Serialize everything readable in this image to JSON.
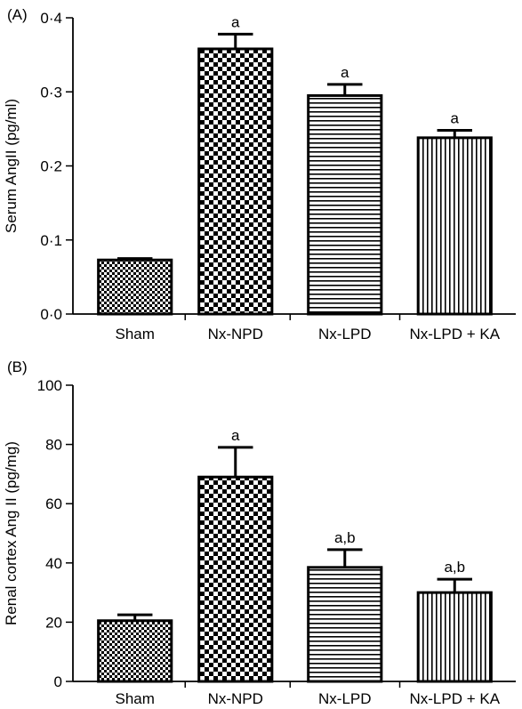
{
  "chart_data": [
    {
      "type": "bar",
      "panel": "(A)",
      "ylabel": "Serum AngII (pg/ml)",
      "categories": [
        "Sham",
        "Nx-NPD",
        "Nx-LPD",
        "Nx-LPD + KA"
      ],
      "values": [
        0.073,
        0.358,
        0.295,
        0.238
      ],
      "errors": [
        0.002,
        0.02,
        0.015,
        0.01
      ],
      "significance": [
        "",
        "a",
        "a",
        "a"
      ],
      "patterns": [
        "fine-checker",
        "checker",
        "horizontal-lines",
        "vertical-lines"
      ],
      "ylim": [
        0,
        0.4
      ],
      "yticks": [
        0,
        0.1,
        0.2,
        0.3,
        0.4
      ],
      "ytick_labels": [
        "0·0",
        "0·1",
        "0·2",
        "0·3",
        "0·4"
      ],
      "grid": false
    },
    {
      "type": "bar",
      "panel": "(B)",
      "ylabel": "Renal cortex Ang II (pg/mg)",
      "categories": [
        "Sham",
        "Nx-NPD",
        "Nx-LPD",
        "Nx-LPD + KA"
      ],
      "values": [
        20.5,
        69,
        38.5,
        30
      ],
      "errors": [
        2.0,
        10,
        6,
        4.5
      ],
      "significance": [
        "",
        "a",
        "a,b",
        "a,b"
      ],
      "patterns": [
        "fine-checker",
        "checker",
        "horizontal-lines",
        "vertical-lines"
      ],
      "ylim": [
        0,
        100
      ],
      "yticks": [
        0,
        20,
        40,
        60,
        80,
        100
      ],
      "ytick_labels": [
        "0",
        "20",
        "40",
        "60",
        "80",
        "100"
      ],
      "grid": false
    }
  ],
  "colors": {
    "ink": "#000000",
    "background": "#ffffff"
  }
}
